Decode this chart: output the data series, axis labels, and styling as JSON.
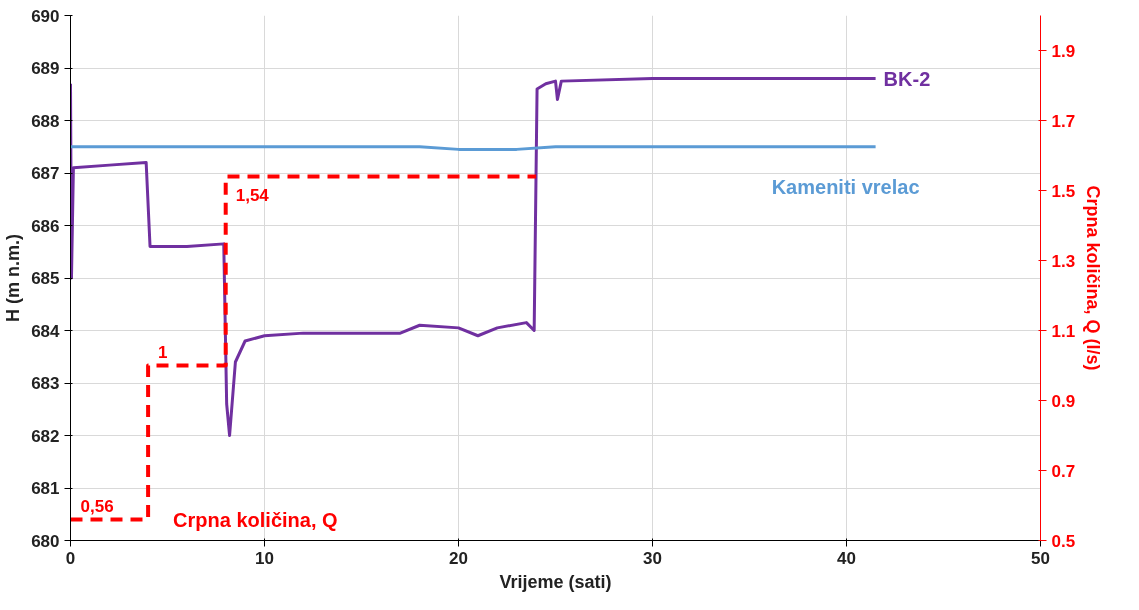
{
  "chart_data": {
    "type": "line",
    "xlabel": "Vrijeme (sati)",
    "ylabel": "H (m n.m.)",
    "y2label": "Crpna količina, Q (l/s)",
    "xlim": [
      0,
      50
    ],
    "xticks": [
      0,
      10,
      20,
      30,
      40,
      50
    ],
    "ylim": [
      680,
      690
    ],
    "yticks": [
      680,
      681,
      682,
      683,
      684,
      685,
      686,
      687,
      688,
      689,
      690
    ],
    "y2lim": [
      0.5,
      2.0
    ],
    "y2ticks": [
      {
        "value": 0.5,
        "label": "0.5"
      },
      {
        "value": 0.7,
        "label": "0.7"
      },
      {
        "value": 0.9,
        "label": "0.9"
      },
      {
        "value": 1.1,
        "label": "1.1"
      },
      {
        "value": 1.3,
        "label": "1.3"
      },
      {
        "value": 1.5,
        "label": "1.5"
      },
      {
        "value": 1.7,
        "label": "1.7"
      },
      {
        "value": 1.9,
        "label": "1.9"
      }
    ],
    "grid": true,
    "legend": false,
    "marker": "none",
    "series": [
      {
        "name": "BK-2",
        "color": "#7030a0",
        "x": [
          0,
          0.05,
          0.15,
          2,
          3.9,
          4.1,
          6,
          7.9,
          8.05,
          8.2,
          8.5,
          9,
          10,
          12,
          15,
          17,
          18,
          20,
          21,
          22,
          23.5,
          23.9,
          24.05,
          24.5,
          25,
          25.1,
          25.3,
          30,
          41.5
        ],
        "values": [
          688.7,
          685.0,
          687.1,
          687.15,
          687.2,
          685.6,
          685.6,
          685.65,
          682.6,
          682.0,
          683.4,
          683.8,
          683.9,
          683.95,
          683.95,
          683.95,
          684.1,
          684.05,
          683.9,
          684.05,
          684.15,
          684.0,
          688.6,
          688.7,
          688.75,
          688.4,
          688.75,
          688.8,
          688.8
        ]
      },
      {
        "name": "Kameniti vrelac",
        "color": "#5b9bd5",
        "x": [
          0,
          18,
          20,
          23,
          25,
          41.5
        ],
        "values": [
          687.5,
          687.5,
          687.45,
          687.45,
          687.5,
          687.5
        ]
      },
      {
        "name": "Crpna količina, Q",
        "type": "step",
        "axis": "y2",
        "color": "#ff0000",
        "line_style": "dashed",
        "x": [
          0,
          4,
          8,
          24
        ],
        "values": [
          0.56,
          1,
          1.54,
          1.54
        ],
        "value_labels": [
          "0,56",
          "1",
          "1,54",
          null
        ]
      }
    ]
  }
}
